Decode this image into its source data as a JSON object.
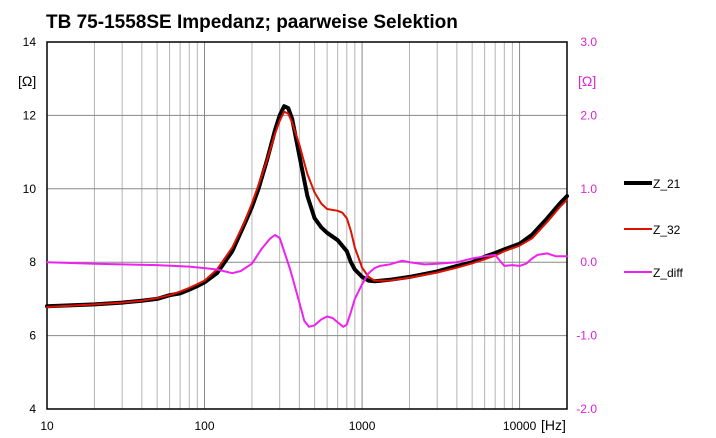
{
  "chart_data": {
    "type": "line",
    "title": "TB 75-1558SE Impedanz; paarweise  Selektion",
    "x_scale": "log",
    "xlim": [
      10,
      20000
    ],
    "ylim_left": [
      4,
      14
    ],
    "ylim_right": [
      -2.0,
      3.0
    ],
    "xlabel": "[Hz]",
    "ylabel_left": "[Ω]",
    "ylabel_right": "[Ω]",
    "grid": true,
    "legend_position": "right",
    "x_ticks": [
      {
        "value": 10,
        "label": "10"
      },
      {
        "value": 100,
        "label": "100"
      },
      {
        "value": 1000,
        "label": "1000"
      },
      {
        "value": 10000,
        "label": "10000"
      }
    ],
    "y_ticks_left": [
      {
        "value": 4,
        "label": "4"
      },
      {
        "value": 6,
        "label": "6"
      },
      {
        "value": 8,
        "label": "8"
      },
      {
        "value": 10,
        "label": "10"
      },
      {
        "value": 12,
        "label": "12"
      },
      {
        "value": 14,
        "label": "14"
      }
    ],
    "y_ticks_right": [
      {
        "value": -2.0,
        "label": "-2.0"
      },
      {
        "value": -1.0,
        "label": "-1.0"
      },
      {
        "value": 0.0,
        "label": "0.0"
      },
      {
        "value": 1.0,
        "label": "1.0"
      },
      {
        "value": 2.0,
        "label": "2.0"
      },
      {
        "value": 3.0,
        "label": "3.0"
      }
    ],
    "series": [
      {
        "name": "Z_21",
        "axis": "left",
        "color": "#000000",
        "width": 4,
        "points": [
          [
            10,
            6.8
          ],
          [
            20,
            6.85
          ],
          [
            30,
            6.9
          ],
          [
            40,
            6.95
          ],
          [
            50,
            7.0
          ],
          [
            60,
            7.1
          ],
          [
            70,
            7.15
          ],
          [
            80,
            7.25
          ],
          [
            90,
            7.35
          ],
          [
            100,
            7.45
          ],
          [
            120,
            7.7
          ],
          [
            150,
            8.3
          ],
          [
            180,
            9.05
          ],
          [
            200,
            9.5
          ],
          [
            220,
            10.0
          ],
          [
            250,
            10.8
          ],
          [
            280,
            11.6
          ],
          [
            300,
            12.0
          ],
          [
            320,
            12.25
          ],
          [
            340,
            12.2
          ],
          [
            360,
            11.9
          ],
          [
            400,
            10.9
          ],
          [
            450,
            9.8
          ],
          [
            500,
            9.2
          ],
          [
            550,
            8.95
          ],
          [
            600,
            8.8
          ],
          [
            700,
            8.6
          ],
          [
            800,
            8.3
          ],
          [
            850,
            8.0
          ],
          [
            900,
            7.8
          ],
          [
            1000,
            7.6
          ],
          [
            1100,
            7.5
          ],
          [
            1200,
            7.48
          ],
          [
            1500,
            7.52
          ],
          [
            2000,
            7.6
          ],
          [
            3000,
            7.75
          ],
          [
            4000,
            7.9
          ],
          [
            5000,
            8.0
          ],
          [
            6000,
            8.15
          ],
          [
            7000,
            8.25
          ],
          [
            8000,
            8.35
          ],
          [
            10000,
            8.5
          ],
          [
            12000,
            8.75
          ],
          [
            15000,
            9.2
          ],
          [
            18000,
            9.6
          ],
          [
            20000,
            9.8
          ]
        ]
      },
      {
        "name": "Z_32",
        "axis": "left",
        "color": "#dd1100",
        "width": 2,
        "points": [
          [
            10,
            6.78
          ],
          [
            20,
            6.85
          ],
          [
            30,
            6.9
          ],
          [
            40,
            6.95
          ],
          [
            50,
            7.02
          ],
          [
            60,
            7.1
          ],
          [
            70,
            7.2
          ],
          [
            80,
            7.3
          ],
          [
            90,
            7.4
          ],
          [
            100,
            7.5
          ],
          [
            120,
            7.8
          ],
          [
            150,
            8.4
          ],
          [
            180,
            9.1
          ],
          [
            200,
            9.6
          ],
          [
            220,
            10.1
          ],
          [
            250,
            10.8
          ],
          [
            280,
            11.5
          ],
          [
            300,
            11.85
          ],
          [
            320,
            12.1
          ],
          [
            340,
            12.05
          ],
          [
            360,
            11.8
          ],
          [
            400,
            11.2
          ],
          [
            450,
            10.4
          ],
          [
            500,
            9.9
          ],
          [
            550,
            9.6
          ],
          [
            600,
            9.45
          ],
          [
            700,
            9.4
          ],
          [
            750,
            9.35
          ],
          [
            800,
            9.2
          ],
          [
            850,
            8.85
          ],
          [
            900,
            8.4
          ],
          [
            1000,
            7.85
          ],
          [
            1100,
            7.6
          ],
          [
            1200,
            7.5
          ],
          [
            1500,
            7.5
          ],
          [
            2000,
            7.58
          ],
          [
            3000,
            7.72
          ],
          [
            4000,
            7.85
          ],
          [
            5000,
            7.97
          ],
          [
            6000,
            8.08
          ],
          [
            7000,
            8.18
          ],
          [
            8000,
            8.3
          ],
          [
            10000,
            8.45
          ],
          [
            12000,
            8.65
          ],
          [
            15000,
            9.1
          ],
          [
            18000,
            9.5
          ],
          [
            20000,
            9.7
          ]
        ]
      },
      {
        "name": "Z_diff",
        "axis": "right",
        "color": "#ee22ee",
        "width": 2,
        "points": [
          [
            10,
            0.0
          ],
          [
            20,
            -0.02
          ],
          [
            30,
            -0.03
          ],
          [
            50,
            -0.04
          ],
          [
            80,
            -0.06
          ],
          [
            100,
            -0.08
          ],
          [
            120,
            -0.1
          ],
          [
            150,
            -0.15
          ],
          [
            170,
            -0.12
          ],
          [
            200,
            -0.02
          ],
          [
            230,
            0.18
          ],
          [
            260,
            0.32
          ],
          [
            280,
            0.37
          ],
          [
            300,
            0.33
          ],
          [
            320,
            0.15
          ],
          [
            350,
            -0.1
          ],
          [
            400,
            -0.55
          ],
          [
            430,
            -0.8
          ],
          [
            460,
            -0.88
          ],
          [
            500,
            -0.86
          ],
          [
            550,
            -0.78
          ],
          [
            600,
            -0.74
          ],
          [
            650,
            -0.76
          ],
          [
            700,
            -0.82
          ],
          [
            760,
            -0.88
          ],
          [
            800,
            -0.85
          ],
          [
            850,
            -0.68
          ],
          [
            900,
            -0.5
          ],
          [
            1000,
            -0.3
          ],
          [
            1100,
            -0.15
          ],
          [
            1200,
            -0.08
          ],
          [
            1300,
            -0.05
          ],
          [
            1500,
            -0.03
          ],
          [
            1800,
            0.02
          ],
          [
            2000,
            0.0
          ],
          [
            2500,
            -0.03
          ],
          [
            3000,
            -0.02
          ],
          [
            4000,
            0.0
          ],
          [
            5000,
            0.05
          ],
          [
            6000,
            0.08
          ],
          [
            7000,
            0.1
          ],
          [
            7500,
            0.02
          ],
          [
            8000,
            -0.05
          ],
          [
            9000,
            -0.04
          ],
          [
            10000,
            -0.05
          ],
          [
            11000,
            -0.02
          ],
          [
            12000,
            0.05
          ],
          [
            13000,
            0.1
          ],
          [
            15000,
            0.12
          ],
          [
            17000,
            0.08
          ],
          [
            20000,
            0.08
          ]
        ]
      }
    ]
  }
}
